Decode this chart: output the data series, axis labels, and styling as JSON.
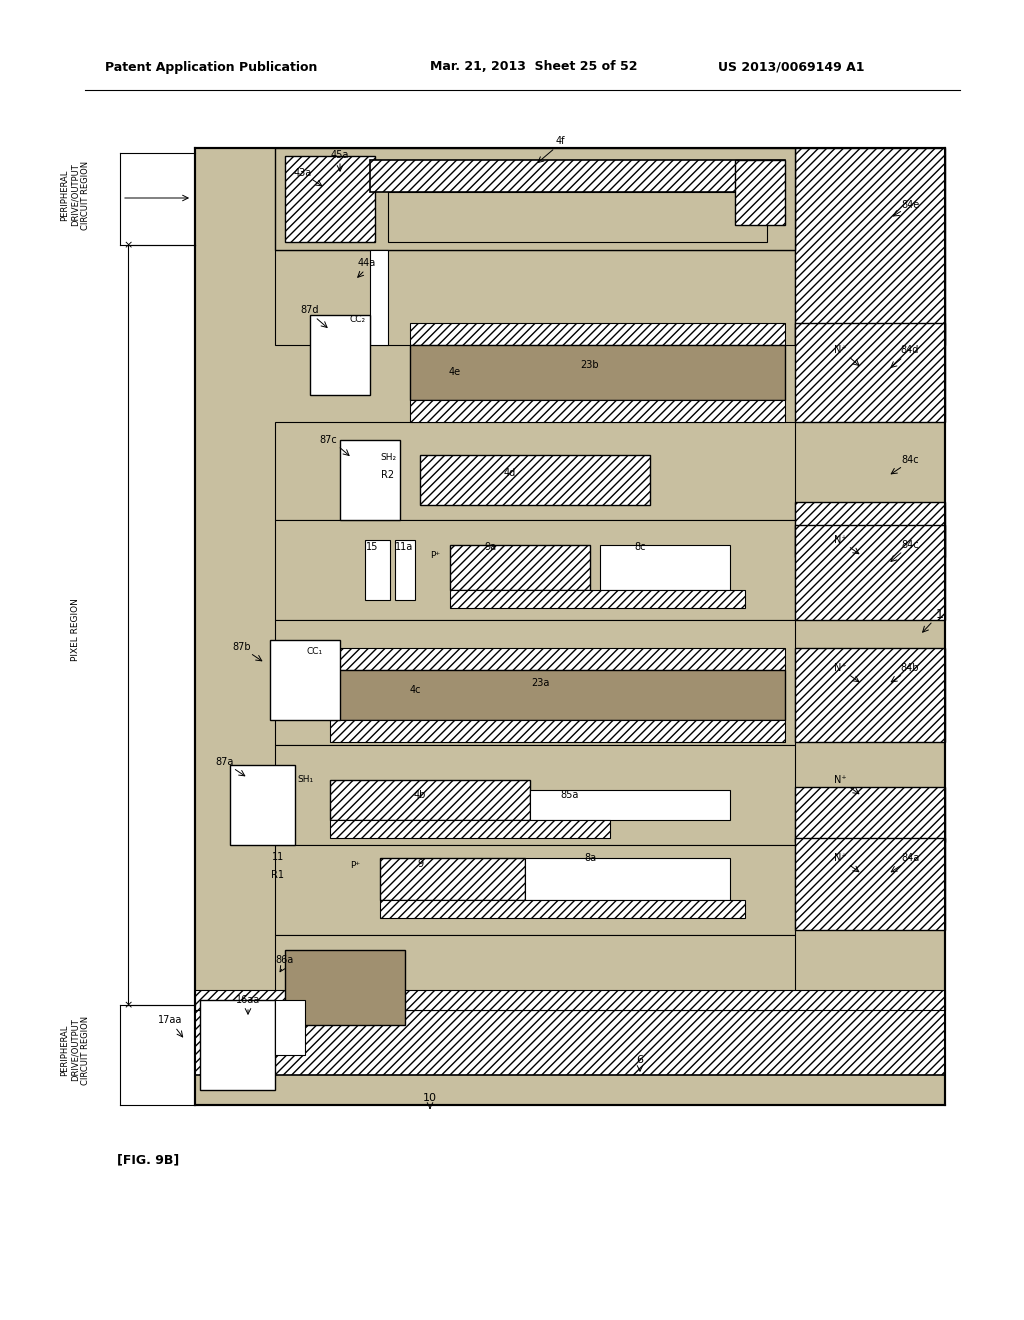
{
  "header_left": "Patent Application Publication",
  "header_mid": "Mar. 21, 2013  Sheet 25 of 52",
  "header_right": "US 2013/0069149 A1",
  "fig_label": "[FIG. 9B]",
  "col_stipple": "#c8bfa0",
  "col_white": "#ffffff",
  "col_hatch_fg": "#444444",
  "col_black": "#000000",
  "col_dark_stipple": "#a09070"
}
